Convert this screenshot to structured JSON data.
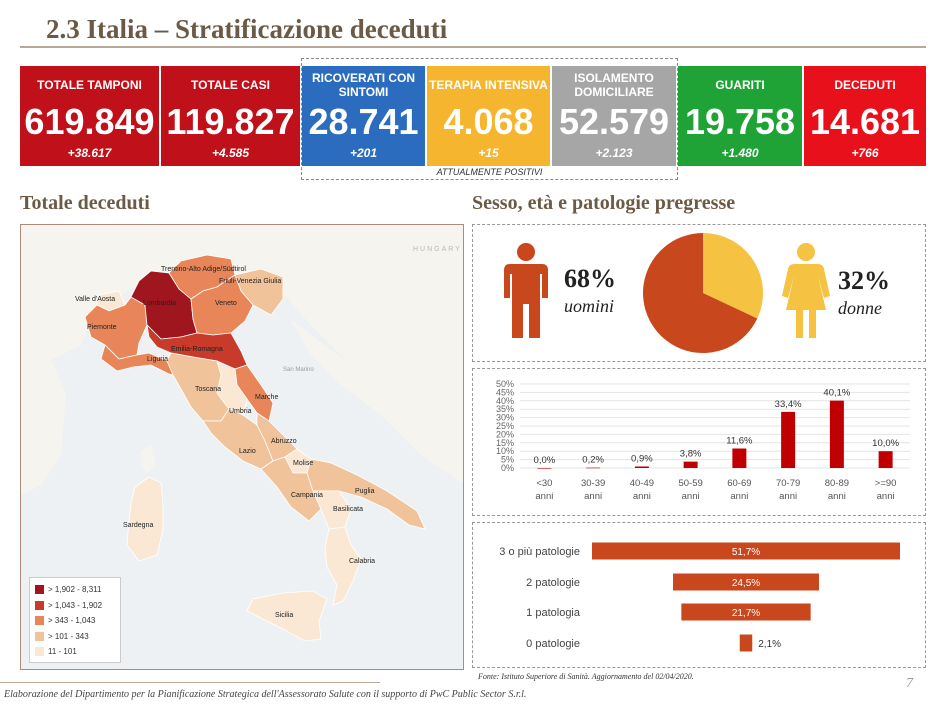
{
  "title": "2.3 Italia – Stratificazione deceduti",
  "colors": {
    "title_brown": "#6b5a45",
    "map_dark": "#a0161e",
    "map_red": "#c83a2a",
    "map_orange": "#e8865a",
    "map_light": "#f0c39a",
    "map_pale": "#fae8d5",
    "male": "#c9471c",
    "female": "#f5c242",
    "age_bar": "#c00000",
    "patol_bar": "#c9471c"
  },
  "kpis": [
    {
      "label": "TOTALE TAMPONI",
      "value": "619.849",
      "delta": "+38.617",
      "color": "#c0101a"
    },
    {
      "label": "TOTALE CASI",
      "value": "119.827",
      "delta": "+4.585",
      "color": "#c0101a"
    },
    {
      "label": "RICOVERATI CON SINTOMI",
      "value": "28.741",
      "delta": "+201",
      "color": "#2b6cbf"
    },
    {
      "label": "TERAPIA INTENSIVA",
      "value": "4.068",
      "delta": "+15",
      "color": "#f5b52e"
    },
    {
      "label": "ISOLAMENTO DOMICILIARE",
      "value": "52.579",
      "delta": "+2.123",
      "color": "#a6a6a6"
    },
    {
      "label": "GUARITI",
      "value": "19.758",
      "delta": "+1.480",
      "color": "#1fa337"
    },
    {
      "label": "DECEDUTI",
      "value": "14.681",
      "delta": "+766",
      "color": "#e8101a"
    }
  ],
  "kpi_group_caption": "ATTUALMENTE POSITIVI",
  "left_section_title": "Totale deceduti",
  "right_section_title": "Sesso, età e patologie pregresse",
  "map": {
    "region_labels": [
      "Valle d'Aosta",
      "Lombardia",
      "Trentino-Alto Adige/Südtirol",
      "Friuli-Venezia Giulia",
      "Veneto",
      "Piemonte",
      "Liguria",
      "Emilia-Romagna",
      "Toscana",
      "Umbria",
      "Marche",
      "Lazio",
      "Abruzzo",
      "Molise",
      "Campania",
      "Puglia",
      "Basilicata",
      "Calabria",
      "Sardegna",
      "Sicilia"
    ],
    "background_labels": [
      "HUNGARY",
      "San Marino"
    ],
    "legend": [
      {
        "label": "> 1,902 - 8,311",
        "color": "#a0161e"
      },
      {
        "label": "> 1,043 - 1,902",
        "color": "#c83a2a"
      },
      {
        "label": "> 343 - 1,043",
        "color": "#e8865a"
      },
      {
        "label": "> 101 - 343",
        "color": "#f0c39a"
      },
      {
        "label": "11 - 101",
        "color": "#fae8d5"
      }
    ]
  },
  "sex": {
    "male_pct": "68%",
    "male_label": "uomini",
    "female_pct": "32%",
    "female_label": "donne"
  },
  "chart_data": [
    {
      "type": "pie",
      "categories": [
        "uomini",
        "donne"
      ],
      "values": [
        68,
        32
      ],
      "colors": [
        "#c9471c",
        "#f5c242"
      ]
    },
    {
      "type": "bar",
      "categories": [
        "<30 anni",
        "30-39 anni",
        "40-49 anni",
        "50-59 anni",
        "60-69 anni",
        "70-79 anni",
        "80-89 anni",
        ">=90 anni"
      ],
      "values": [
        0.0,
        0.2,
        0.9,
        3.8,
        11.6,
        33.4,
        40.1,
        10.0
      ],
      "value_labels": [
        "0,0%",
        "0,2%",
        "0,9%",
        "3,8%",
        "11,6%",
        "33,4%",
        "40,1%",
        "10,0%"
      ],
      "yticks": [
        "0%",
        "5%",
        "10%",
        "15%",
        "20%",
        "25%",
        "30%",
        "35%",
        "40%",
        "45%",
        "50%"
      ],
      "ylim": [
        0,
        50
      ],
      "grid": true
    },
    {
      "type": "bar",
      "orientation": "horizontal",
      "categories": [
        "3 o più patologie",
        "2 patologie",
        "1 patologia",
        "0 patologie"
      ],
      "values": [
        51.7,
        24.5,
        21.7,
        2.1
      ],
      "value_labels": [
        "51,7%",
        "24,5%",
        "21,7%",
        "2,1%"
      ]
    }
  ],
  "source_note": "Fonte: Istituto Superiore di Sanità. Aggiornamento del 02/04/2020.",
  "footer": "Elaborazione del Dipartimento per la Pianificazione Strategica dell'Assessorato Salute con il supporto di PwC Public Sector S.r.l.",
  "page_number": "7"
}
